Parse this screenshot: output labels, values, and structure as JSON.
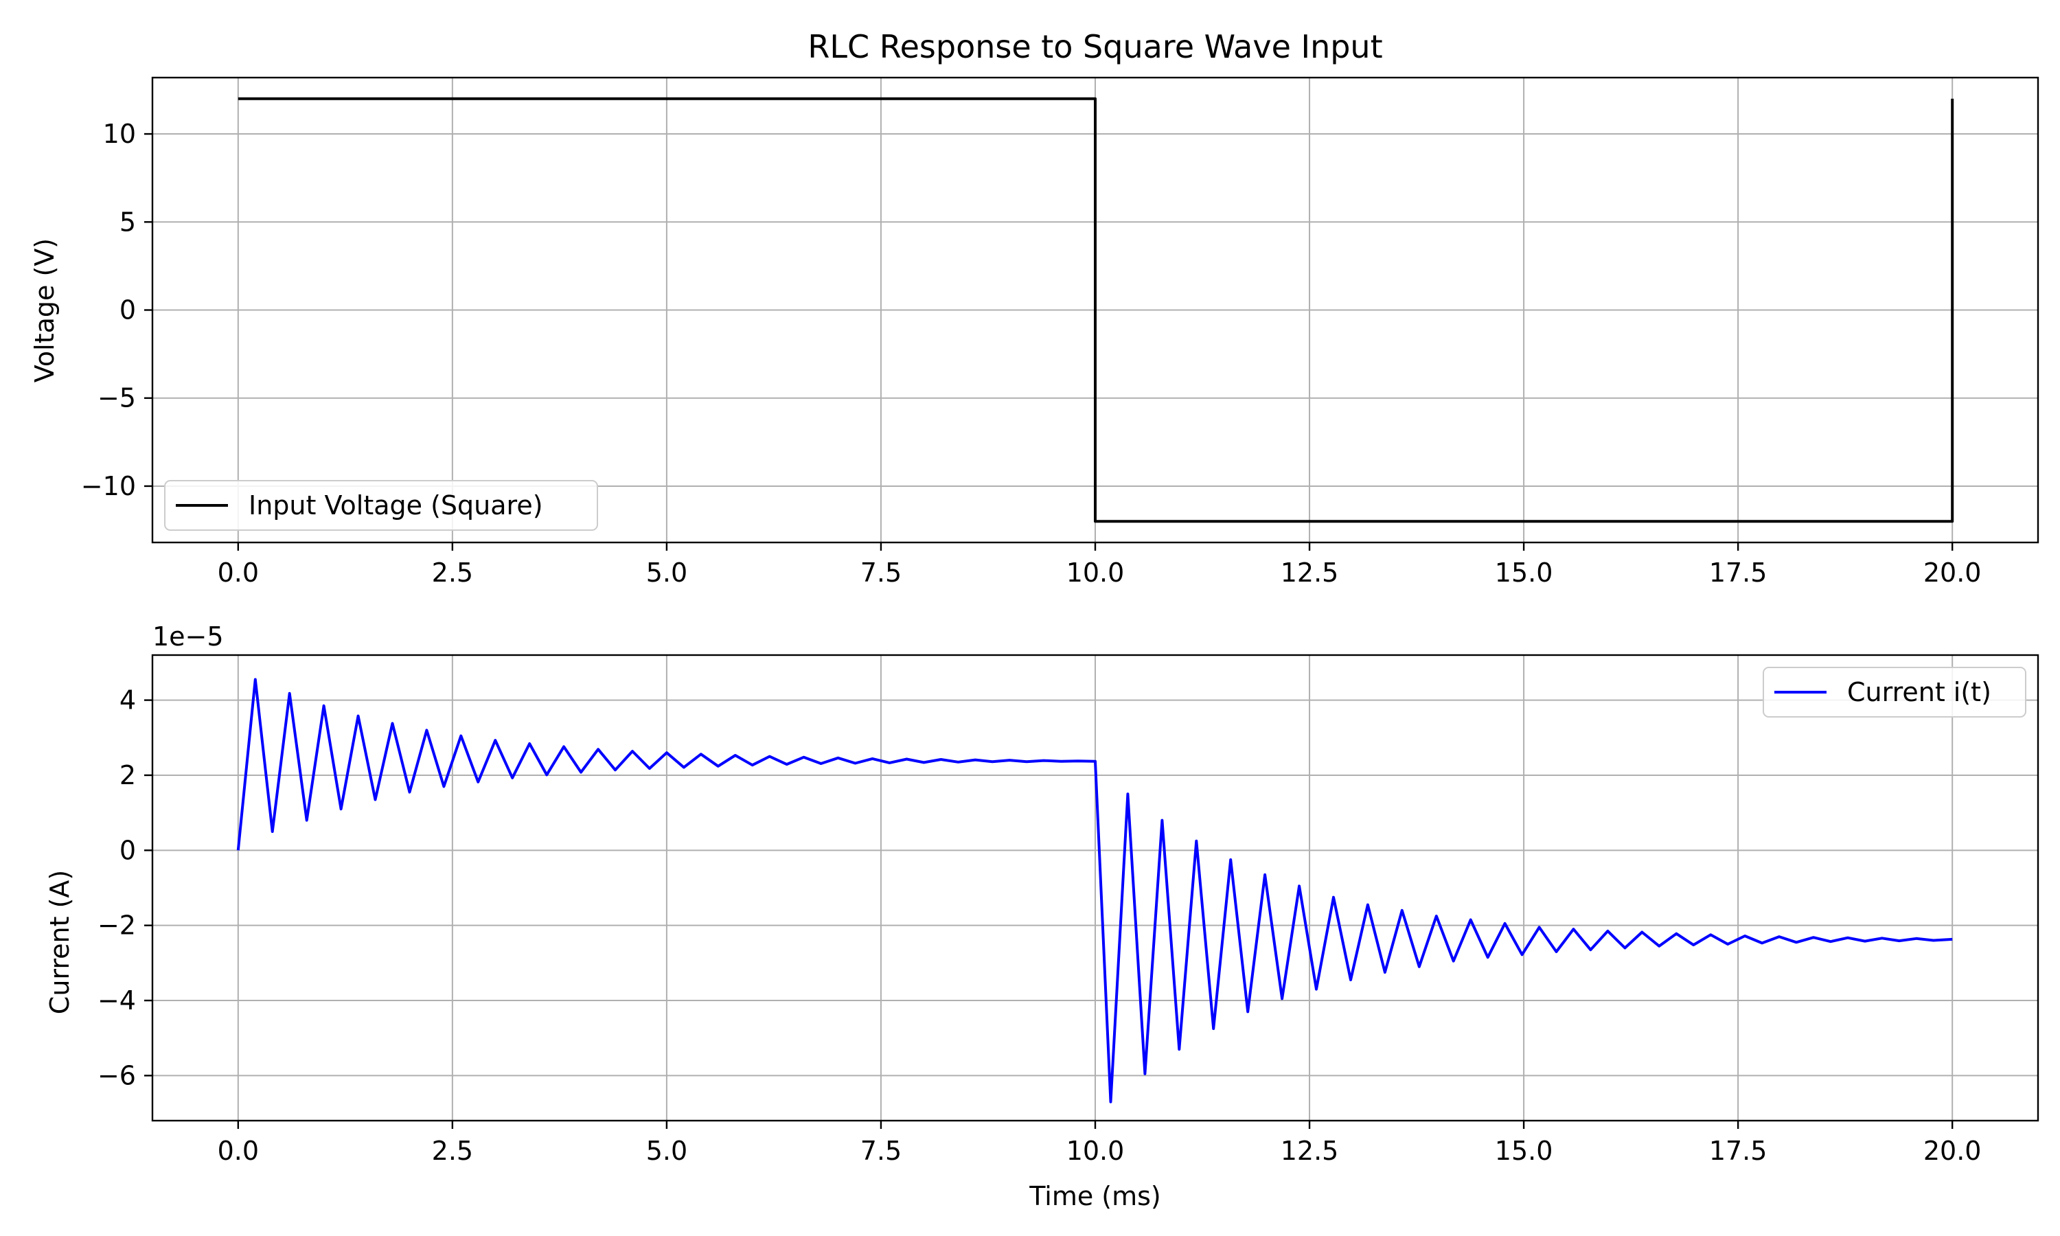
{
  "chart_data": [
    {
      "type": "line",
      "title": "RLC Response to Square Wave Input",
      "xlabel": "",
      "ylabel": "Voltage (V)",
      "xlim": [
        -1.0,
        21.0
      ],
      "ylim": [
        -13.2,
        13.2
      ],
      "xticks": [
        0.0,
        2.5,
        5.0,
        7.5,
        10.0,
        12.5,
        15.0,
        17.5,
        20.0
      ],
      "xtick_labels": [
        "0.0",
        "2.5",
        "5.0",
        "7.5",
        "10.0",
        "12.5",
        "15.0",
        "17.5",
        "20.0"
      ],
      "yticks": [
        -10,
        -5,
        0,
        5,
        10
      ],
      "ytick_labels": [
        "−10",
        "−5",
        "0",
        "5",
        "10"
      ],
      "grid": true,
      "legend_position": "lower-left",
      "series": [
        {
          "name": "Input Voltage (Square)",
          "color": "#000000",
          "x": [
            0.0,
            10.0,
            10.0,
            20.0,
            20.0
          ],
          "y": [
            12,
            12,
            -12,
            -12,
            12
          ]
        }
      ]
    },
    {
      "type": "line",
      "title": "",
      "xlabel": "Time (ms)",
      "ylabel": "Current (A)",
      "offset_text": "1e−5",
      "xlim": [
        -1.0,
        21.0
      ],
      "ylim": [
        -7.2,
        5.2
      ],
      "xticks": [
        0.0,
        2.5,
        5.0,
        7.5,
        10.0,
        12.5,
        15.0,
        17.5,
        20.0
      ],
      "xtick_labels": [
        "0.0",
        "2.5",
        "5.0",
        "7.5",
        "10.0",
        "12.5",
        "15.0",
        "17.5",
        "20.0"
      ],
      "yticks": [
        -6,
        -4,
        -2,
        0,
        2,
        4
      ],
      "ytick_labels": [
        "−6",
        "−4",
        "−2",
        "0",
        "2",
        "4"
      ],
      "grid": true,
      "legend_position": "upper-right",
      "series": [
        {
          "name": "Current i(t)",
          "color": "#0000ff",
          "x": [
            0.0,
            0.2,
            0.4,
            0.6,
            0.8,
            1.0,
            1.2,
            1.4,
            1.6,
            1.8,
            2.0,
            2.2,
            2.4,
            2.6,
            2.8,
            3.0,
            3.2,
            3.4,
            3.6,
            3.8,
            4.0,
            4.2,
            4.4,
            4.6,
            4.8,
            5.0,
            5.2,
            5.4,
            5.6,
            5.8,
            6.0,
            6.2,
            6.4,
            6.6,
            6.8,
            7.0,
            7.2,
            7.4,
            7.6,
            7.8,
            8.0,
            8.2,
            8.4,
            8.6,
            8.8,
            9.0,
            9.2,
            9.4,
            9.6,
            9.8,
            10.0,
            10.18,
            10.38,
            10.58,
            10.78,
            10.98,
            11.18,
            11.38,
            11.58,
            11.78,
            11.98,
            12.18,
            12.38,
            12.58,
            12.78,
            12.98,
            13.18,
            13.38,
            13.58,
            13.78,
            13.98,
            14.18,
            14.38,
            14.58,
            14.78,
            14.98,
            15.18,
            15.38,
            15.58,
            15.78,
            15.98,
            16.18,
            16.38,
            16.58,
            16.78,
            16.98,
            17.18,
            17.38,
            17.58,
            17.78,
            17.98,
            18.18,
            18.38,
            18.58,
            18.78,
            18.98,
            19.18,
            19.38,
            19.58,
            19.78,
            20.0
          ],
          "y": [
            0.0,
            4.55,
            0.5,
            4.18,
            0.8,
            3.85,
            1.1,
            3.58,
            1.35,
            3.38,
            1.55,
            3.2,
            1.7,
            3.05,
            1.82,
            2.93,
            1.93,
            2.84,
            2.01,
            2.76,
            2.08,
            2.69,
            2.14,
            2.64,
            2.18,
            2.6,
            2.21,
            2.56,
            2.24,
            2.53,
            2.27,
            2.5,
            2.29,
            2.48,
            2.31,
            2.46,
            2.32,
            2.44,
            2.33,
            2.43,
            2.34,
            2.42,
            2.35,
            2.41,
            2.36,
            2.4,
            2.36,
            2.39,
            2.37,
            2.38,
            2.37,
            -6.7,
            1.5,
            -5.95,
            0.8,
            -5.3,
            0.25,
            -4.75,
            -0.25,
            -4.3,
            -0.65,
            -3.95,
            -0.95,
            -3.7,
            -1.25,
            -3.45,
            -1.45,
            -3.25,
            -1.6,
            -3.1,
            -1.75,
            -2.95,
            -1.85,
            -2.85,
            -1.95,
            -2.78,
            -2.05,
            -2.7,
            -2.1,
            -2.65,
            -2.15,
            -2.6,
            -2.18,
            -2.55,
            -2.22,
            -2.52,
            -2.25,
            -2.5,
            -2.28,
            -2.47,
            -2.3,
            -2.45,
            -2.32,
            -2.43,
            -2.33,
            -2.42,
            -2.34,
            -2.41,
            -2.35,
            -2.4,
            -2.37
          ]
        }
      ]
    }
  ]
}
